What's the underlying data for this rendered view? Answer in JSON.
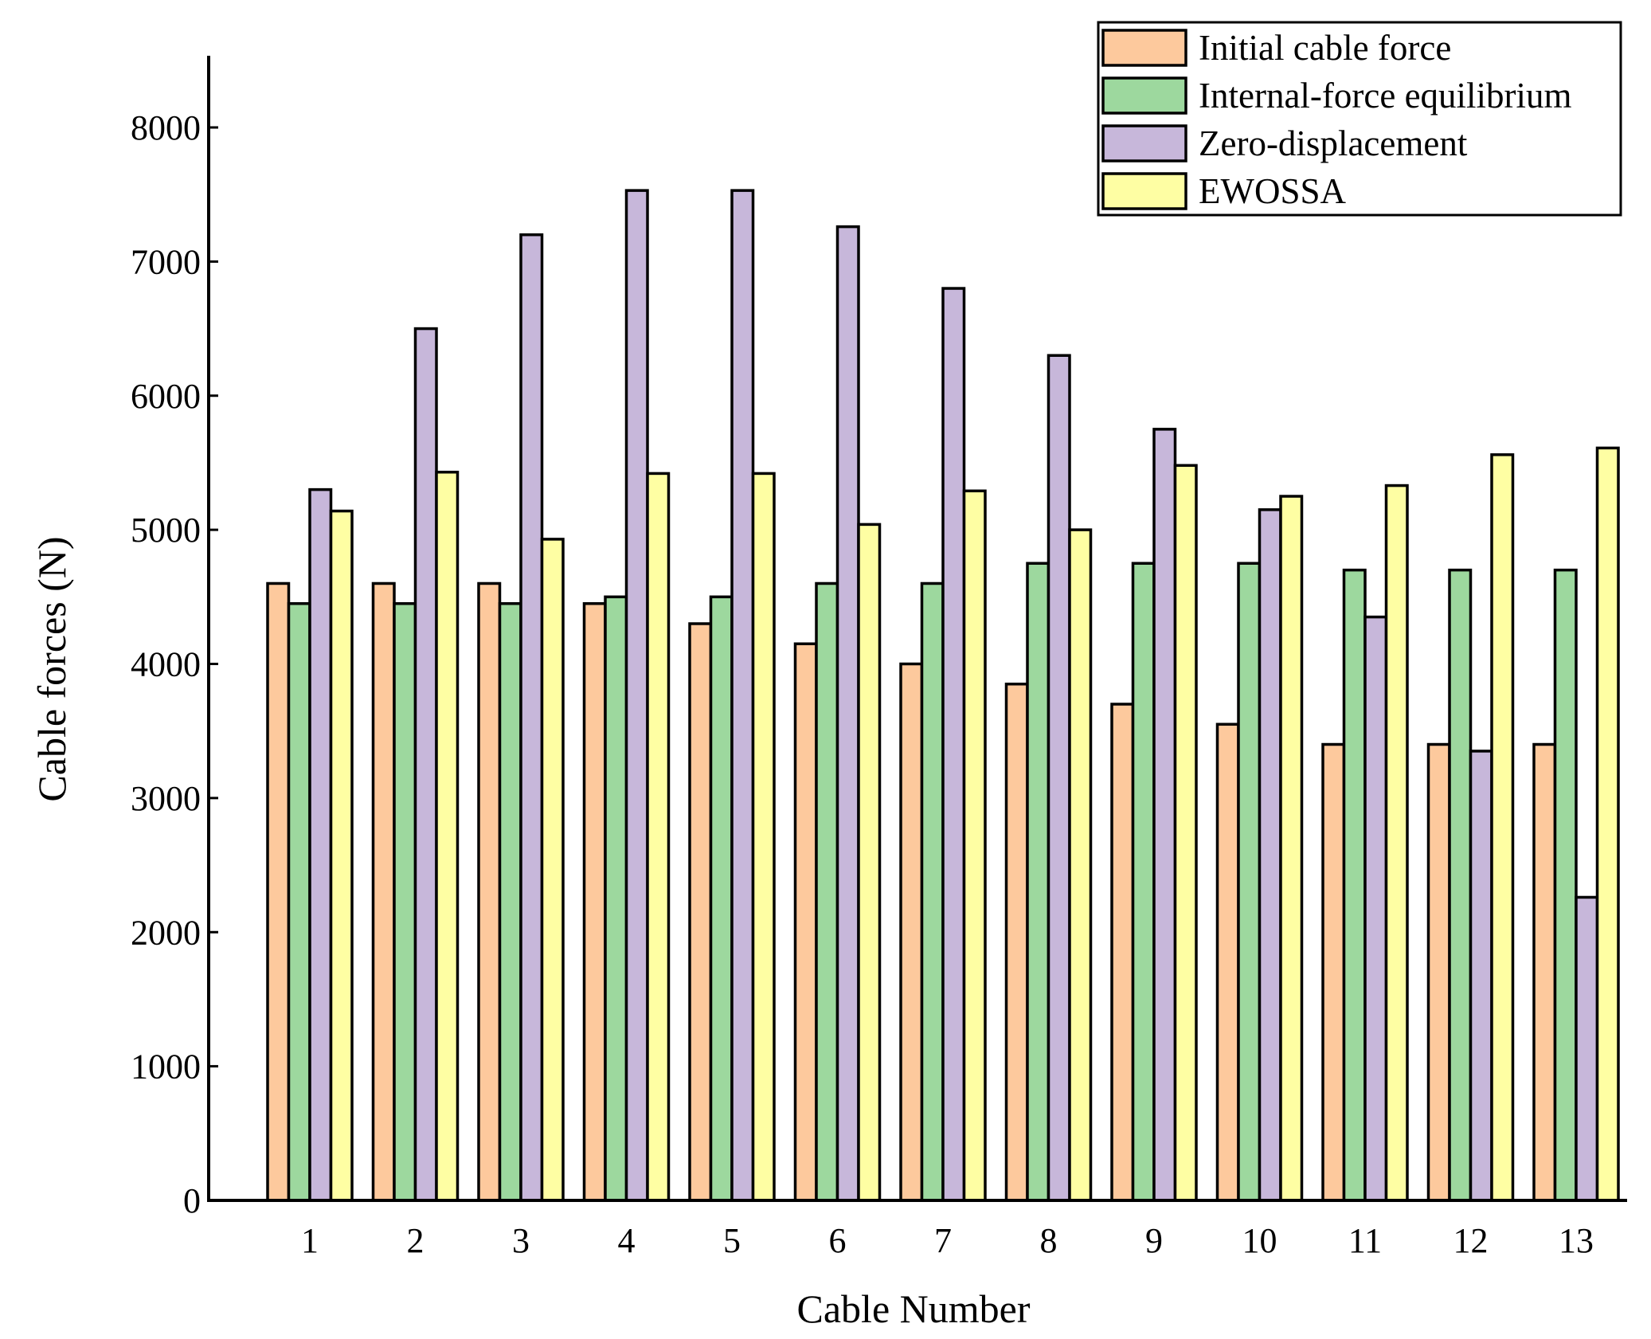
{
  "chart_data": {
    "type": "bar",
    "title": "",
    "xlabel": "Cable Number",
    "ylabel": "Cable forces (N)",
    "ylim": [
      0,
      8500
    ],
    "yticks": [
      0,
      1000,
      2000,
      3000,
      4000,
      5000,
      6000,
      7000,
      8000
    ],
    "grid": false,
    "legend_position": "top-right",
    "categories": [
      "1",
      "2",
      "3",
      "4",
      "5",
      "6",
      "7",
      "8",
      "9",
      "10",
      "11",
      "12",
      "13"
    ],
    "series": [
      {
        "name": "Initial cable force",
        "color": "#FDC99D",
        "values": [
          4600,
          4600,
          4600,
          4450,
          4300,
          4150,
          4000,
          3850,
          3700,
          3550,
          3400,
          3400,
          3400
        ]
      },
      {
        "name": "Internal-force equilibrium",
        "color": "#9DD89E",
        "values": [
          4450,
          4450,
          4450,
          4500,
          4500,
          4600,
          4600,
          4750,
          4750,
          4750,
          4700,
          4700,
          4700
        ]
      },
      {
        "name": "Zero-displacement",
        "color": "#C7B7DA",
        "values": [
          5300,
          6500,
          7200,
          7530,
          7530,
          7260,
          6800,
          6300,
          5750,
          5150,
          4350,
          3350,
          2260
        ]
      },
      {
        "name": "EWOSSA",
        "color": "#FEFEA3",
        "values": [
          5140,
          5430,
          4930,
          5420,
          5420,
          5040,
          5290,
          5000,
          5480,
          5250,
          5330,
          5560,
          5610
        ]
      }
    ]
  }
}
